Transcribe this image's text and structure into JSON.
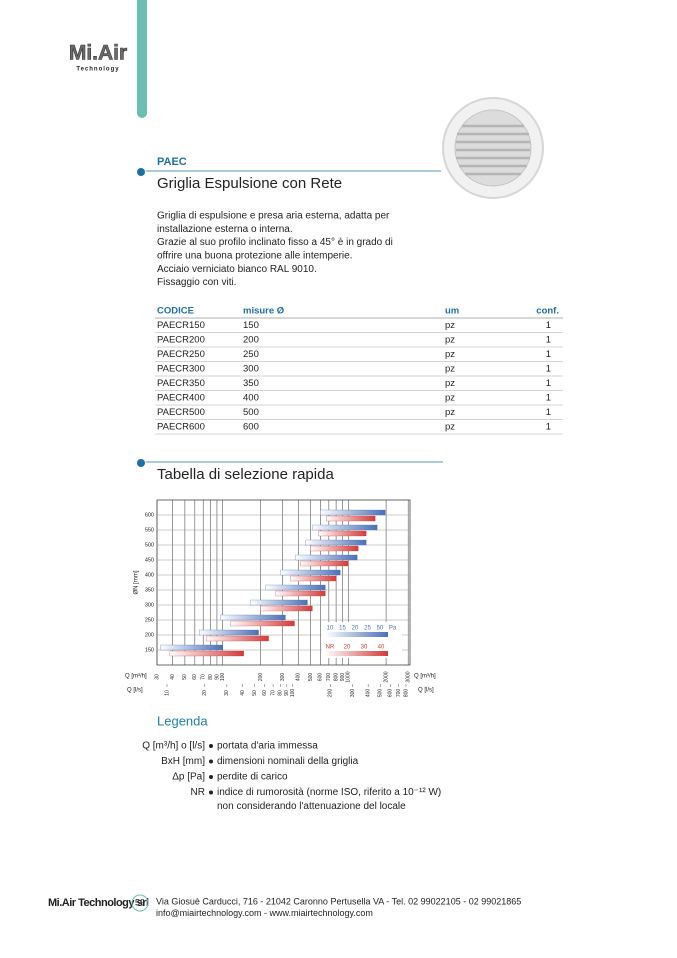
{
  "header": {
    "logo": "Mi.Air",
    "logo_sub": "Technology"
  },
  "product": {
    "code": "PAEC",
    "title": "Griglia Espulsione con Rete",
    "description": [
      "Griglia di espulsione e presa aria esterna, adatta per",
      "installazione esterna o interna.",
      "Grazie al suo profilo inclinato fisso a 45° è in grado di",
      "offrire una buona protezione alle intemperie.",
      "Acciaio verniciato bianco RAL 9010.",
      "Fissaggio con viti."
    ]
  },
  "table": {
    "columns": [
      "CODICE",
      "misure Ø",
      "um",
      "conf."
    ],
    "rows": [
      [
        "PAECR150",
        "150",
        "pz",
        "1"
      ],
      [
        "PAECR200",
        "200",
        "pz",
        "1"
      ],
      [
        "PAECR250",
        "250",
        "pz",
        "1"
      ],
      [
        "PAECR300",
        "300",
        "pz",
        "1"
      ],
      [
        "PAECR350",
        "350",
        "pz",
        "1"
      ],
      [
        "PAECR400",
        "400",
        "pz",
        "1"
      ],
      [
        "PAECR500",
        "500",
        "pz",
        "1"
      ],
      [
        "PAECR600",
        "600",
        "pz",
        "1"
      ]
    ]
  },
  "selection_title": "Tabella di selezione rapida",
  "chart_data": {
    "type": "range-bar",
    "y_label": "ØN [mm]",
    "x_label": "Q [m³/h]",
    "x2_label": "Q [l/s]",
    "categories": [
      150,
      200,
      250,
      300,
      350,
      400,
      450,
      500,
      550,
      600
    ],
    "log_x": true,
    "grid": true,
    "xlim": [
      30,
      3100
    ],
    "xticks": [
      30,
      40,
      50,
      60,
      70,
      80,
      90,
      100,
      200,
      300,
      400,
      500,
      600,
      700,
      800,
      900,
      1000,
      2000,
      3000
    ],
    "x2lim": [
      8.33,
      861.11
    ],
    "x2ticks": [
      10,
      20,
      30,
      40,
      50,
      60,
      70,
      80,
      90,
      100,
      200,
      300,
      400,
      500,
      600,
      700,
      800
    ],
    "series": [
      {
        "color": "#4a70b8",
        "values": [
          [
            32,
            100
          ],
          [
            65,
            193
          ],
          [
            96,
            316
          ],
          [
            167,
            473
          ],
          [
            220,
            657
          ],
          [
            289,
            864
          ],
          [
            380,
            1178
          ],
          [
            456,
            1389
          ],
          [
            518,
            1698
          ],
          [
            600,
            1966
          ]
        ]
      },
      {
        "color": "#d23a3a",
        "values": [
          [
            38,
            147
          ],
          [
            74,
            232
          ],
          [
            116,
            373
          ],
          [
            200,
            518
          ],
          [
            264,
            657
          ],
          [
            347,
            803
          ],
          [
            416,
            1000
          ],
          [
            500,
            1200
          ],
          [
            578,
            1389
          ],
          [
            669,
            1637
          ]
        ]
      }
    ],
    "inset": {
      "dp": [
        "10",
        "15",
        "20",
        "25",
        "50",
        "Pa"
      ],
      "nr": [
        "NR",
        "20",
        "30",
        "40"
      ]
    }
  },
  "legend": {
    "title": "Legenda",
    "items": [
      {
        "term": "Q [m³/h] o [l/s]",
        "desc": [
          "portata d'aria immessa"
        ]
      },
      {
        "term": "BxH [mm]",
        "desc": [
          "dimensioni nominali della griglia"
        ]
      },
      {
        "term": "Δp [Pa]",
        "desc": [
          "perdite di carico"
        ]
      },
      {
        "term": "NR",
        "desc": [
          "indice di rumorosità (norme ISO, riferito a 10⁻¹² W)",
          "non considerando l'attenuazione del locale"
        ]
      }
    ]
  },
  "footer": {
    "company": "Mi.Air Technology srl",
    "page": "59",
    "address": [
      "Via Giosuè Carducci, 716 - 21042 Caronno Pertusella VA - Tel. 02 99022105 - 02 99021865",
      "info@miairtechnology.com - www.miairtechnology.com"
    ]
  }
}
